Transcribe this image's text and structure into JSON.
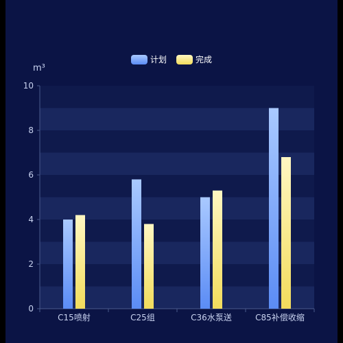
{
  "colors": {
    "background": "#0b1445",
    "plot_stripe_dark": "#0f1a4c",
    "plot_stripe_light": "#19275e",
    "axis_text": "#c9d3f0",
    "axis_line": "#4a5a8c",
    "plan_top": "#a9c9ff",
    "plan_bottom": "#5b8cf5",
    "done_top": "#fff7c2",
    "done_bottom": "#f2dc5c"
  },
  "unit_label": "m³",
  "chart_data": {
    "type": "bar",
    "categories": [
      "C15喷射",
      "C25组",
      "C36水泵送",
      "C85补偿收缩"
    ],
    "series": [
      {
        "name": "计划",
        "values": [
          4,
          5.8,
          5,
          9
        ]
      },
      {
        "name": "完成",
        "values": [
          4.2,
          3.8,
          5.3,
          6.8
        ]
      }
    ],
    "ylim": [
      0,
      10
    ],
    "yticks": [
      0,
      2,
      4,
      6,
      8,
      10
    ],
    "legend": "top-center",
    "grid": "alternating-bands"
  }
}
